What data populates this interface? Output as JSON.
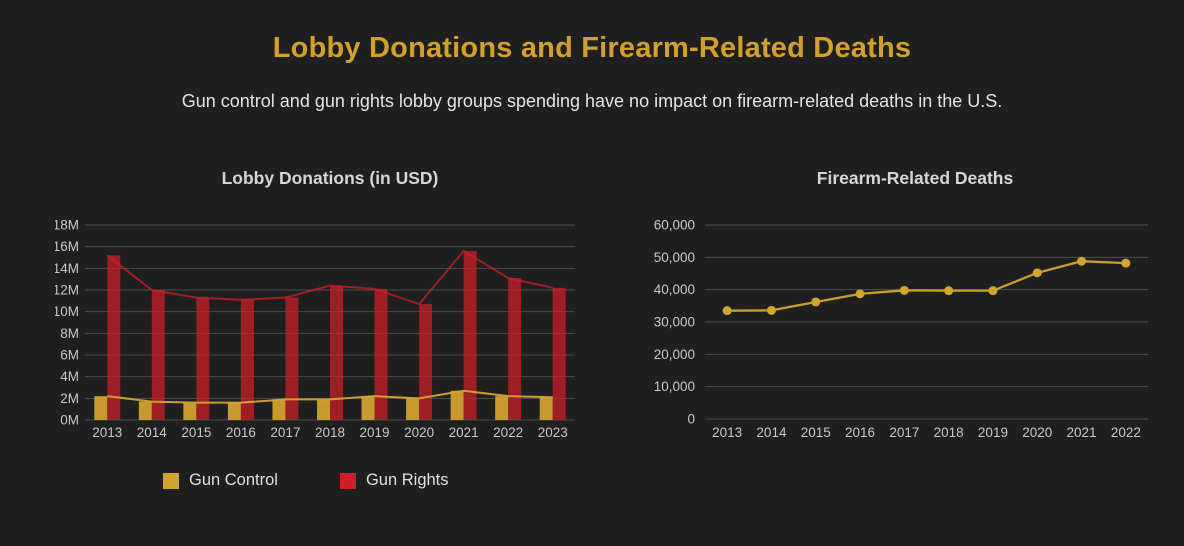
{
  "page": {
    "title": "Lobby Donations and Firearm-Related Deaths",
    "subtitle": "Gun control and gun rights lobby groups spending have no impact on firearm-related deaths in the U.S.",
    "background_color": "#1F1F1F",
    "title_color": "#D3A02B",
    "subtitle_color": "#E4E4E4",
    "gridline_color": "#4D4D4D",
    "tick_label_color": "#C8C8C8"
  },
  "chart_data": [
    {
      "type": "bar",
      "title": "Lobby Donations (in USD)",
      "categories": [
        "2013",
        "2014",
        "2015",
        "2016",
        "2017",
        "2018",
        "2019",
        "2020",
        "2021",
        "2022",
        "2023"
      ],
      "series": [
        {
          "name": "Gun Control",
          "color": "#D4A431",
          "values": [
            2.2,
            1.7,
            1.6,
            1.6,
            1.9,
            1.9,
            2.2,
            2.0,
            2.7,
            2.2,
            2.1
          ]
        },
        {
          "name": "Gun Rights",
          "color": "#CE2026",
          "values": [
            15.2,
            12.0,
            11.3,
            11.1,
            11.3,
            12.4,
            12.1,
            10.7,
            15.6,
            13.1,
            12.2
          ]
        }
      ],
      "unit": "M (USD millions)",
      "ylim": [
        0,
        18
      ],
      "yticks": [
        "18M",
        "16M",
        "14M",
        "12M",
        "10M",
        "8M",
        "6M",
        "4M",
        "2M",
        "0M"
      ],
      "grid": true,
      "overlay_trend_lines": true,
      "legend_position": "bottom"
    },
    {
      "type": "line",
      "title": "Firearm-Related Deaths",
      "categories": [
        "2013",
        "2014",
        "2015",
        "2016",
        "2017",
        "2018",
        "2019",
        "2020",
        "2021",
        "2022"
      ],
      "values": [
        33500,
        33600,
        36200,
        38700,
        39800,
        39700,
        39700,
        45200,
        48800,
        48200
      ],
      "color": "#D4A431",
      "ylim": [
        0,
        60000
      ],
      "yticks": [
        "60,000",
        "50,000",
        "40,000",
        "30,000",
        "20,000",
        "10,000",
        "0"
      ],
      "grid": true,
      "legend_position": "none"
    }
  ]
}
